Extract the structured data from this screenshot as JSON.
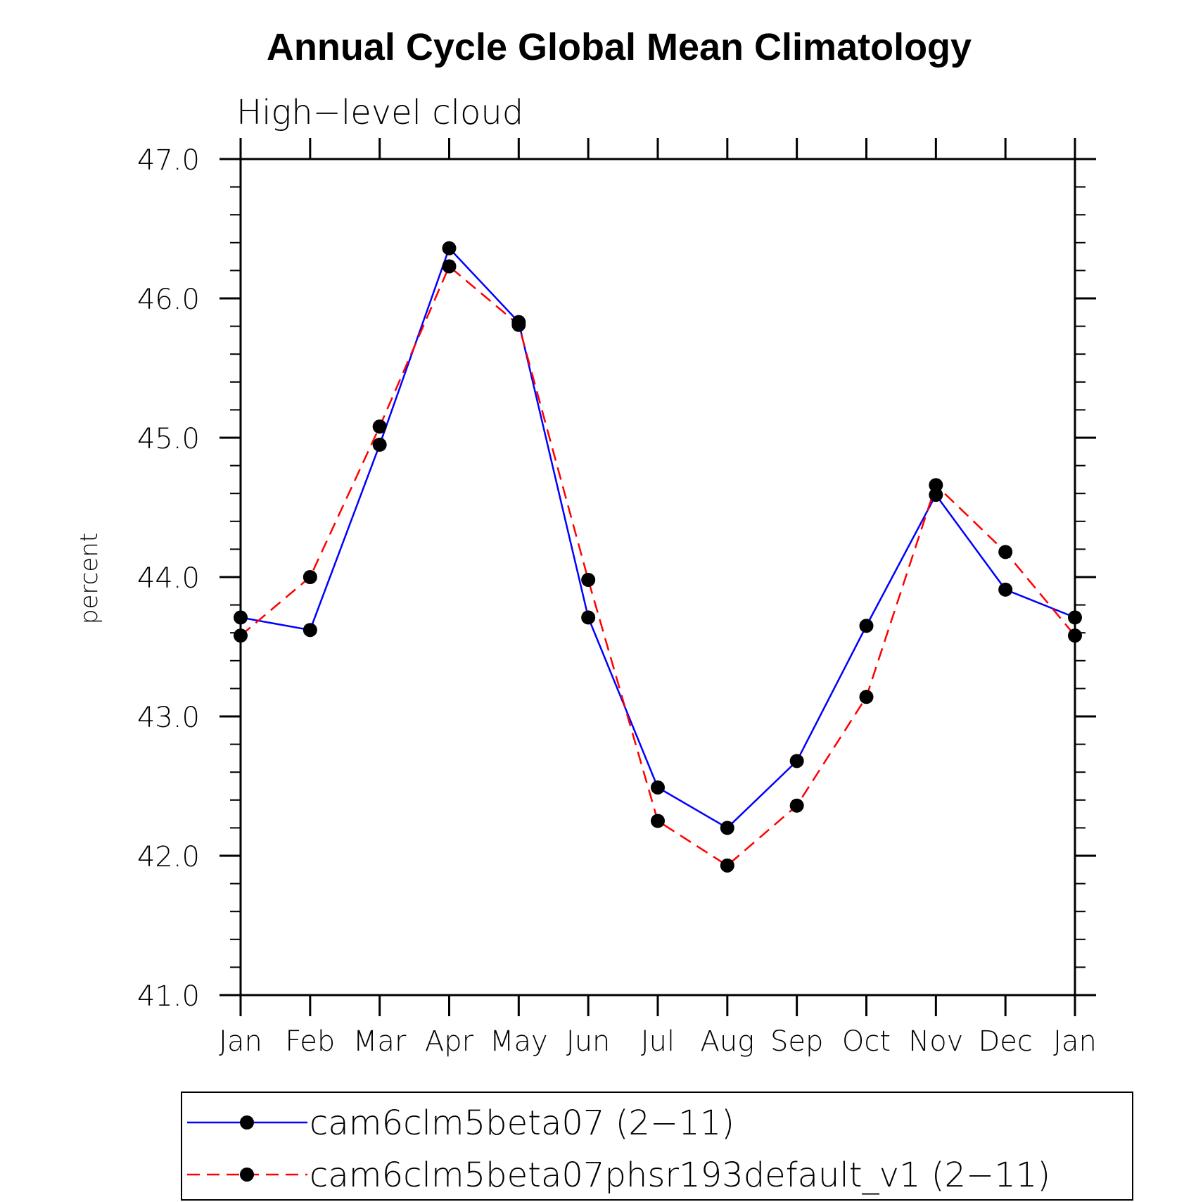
{
  "chart_data": {
    "type": "line",
    "title": "Annual Cycle Global Mean Climatology",
    "subtitle": "High−level cloud",
    "xlabel": "",
    "ylabel": "percent",
    "categories": [
      "Jan",
      "Feb",
      "Mar",
      "Apr",
      "May",
      "Jun",
      "Jul",
      "Aug",
      "Sep",
      "Oct",
      "Nov",
      "Dec",
      "Jan"
    ],
    "ylim": [
      41.0,
      47.0
    ],
    "yticks": [
      "41.0",
      "42.0",
      "43.0",
      "44.0",
      "45.0",
      "46.0",
      "47.0"
    ],
    "yminor_step": 0.2,
    "series": [
      {
        "name": "cam6clm5beta07 (2−11)",
        "color": "#0000ff",
        "dash": "solid",
        "values": [
          43.71,
          43.62,
          44.95,
          46.36,
          45.83,
          43.71,
          42.49,
          42.2,
          42.68,
          43.65,
          44.59,
          43.91,
          43.71
        ]
      },
      {
        "name": "cam6clm5beta07phsr193default_v1 (2−11)",
        "color": "#ff0000",
        "dash": "dashed",
        "values": [
          43.58,
          44.0,
          45.08,
          46.23,
          45.81,
          43.98,
          42.25,
          41.93,
          42.36,
          43.14,
          44.66,
          44.18,
          43.58
        ]
      }
    ],
    "legend_position": "bottom"
  }
}
